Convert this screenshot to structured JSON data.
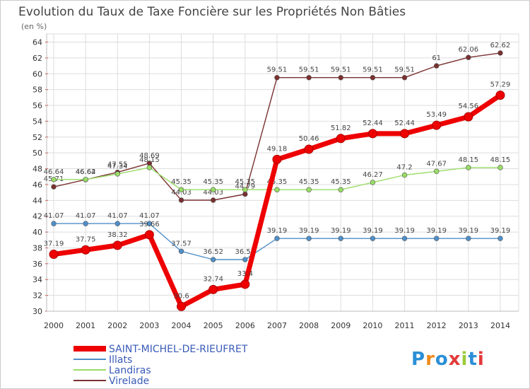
{
  "chart_data": {
    "type": "line",
    "title": "Evolution du Taux de Taxe Foncière sur les Propriétés Non Bâties",
    "ylabel": "(en %)",
    "xlabel": "",
    "categories": [
      "2000",
      "2001",
      "2002",
      "2003",
      "2004",
      "2005",
      "2006",
      "2007",
      "2008",
      "2009",
      "2010",
      "2011",
      "2012",
      "2013",
      "2014"
    ],
    "ylim": [
      30,
      64
    ],
    "yticks": [
      "30",
      "32",
      "34",
      "36",
      "38",
      "40",
      "42",
      "44",
      "46",
      "48",
      "50",
      "52",
      "54",
      "56",
      "58",
      "60",
      "62",
      "64"
    ],
    "grid": true,
    "legend_position": "bottom-left",
    "series": [
      {
        "name": "SAINT-MICHEL-DE-RIEUFRET",
        "color": "#ee0000",
        "values": [
          37.19,
          37.75,
          38.32,
          39.66,
          30.6,
          32.74,
          33.4,
          49.18,
          50.46,
          51.82,
          52.44,
          52.44,
          53.49,
          54.56,
          57.29
        ],
        "labels": [
          "37.19",
          "37.75",
          "38.32",
          "39.66",
          "30.6",
          "32.74",
          "33.4",
          "49.18",
          "50.46",
          "51.82",
          "52.44",
          "52.44",
          "53.49",
          "54.56",
          "57.29"
        ]
      },
      {
        "name": "Illats",
        "color": "#4f8fc9",
        "values": [
          41.07,
          41.07,
          41.07,
          41.07,
          37.57,
          36.52,
          36.52,
          39.19,
          39.19,
          39.19,
          39.19,
          39.19,
          39.19,
          39.19,
          39.19
        ],
        "labels": [
          "41.07",
          "41.07",
          "41.07",
          "41.07",
          "37.57",
          "36.52",
          "36.52",
          "39.19",
          "39.19",
          "39.19",
          "39.19",
          "39.19",
          "39.19",
          "39.19",
          "39.19"
        ]
      },
      {
        "name": "Landiras",
        "color": "#99dd66",
        "values": [
          46.64,
          46.64,
          47.34,
          48.15,
          45.35,
          45.35,
          45.35,
          45.35,
          45.35,
          45.35,
          46.27,
          47.2,
          47.67,
          48.15,
          48.15
        ],
        "labels": [
          "46.64",
          "46.64",
          "47.34",
          "48.15",
          "45.35",
          "45.35",
          "45.35",
          "45.35",
          "45.35",
          "45.35",
          "46.27",
          "47.2",
          "47.67",
          "48.15",
          "48.15"
        ]
      },
      {
        "name": "Virelade",
        "color": "#7a3030",
        "values": [
          45.71,
          46.62,
          47.55,
          48.69,
          44.03,
          44.03,
          44.79,
          59.51,
          59.51,
          59.51,
          59.51,
          59.51,
          61,
          62.06,
          62.62
        ],
        "labels": [
          "45.71",
          "46.62",
          "47.55",
          "48.69",
          "44.03",
          "44.03",
          "44.79",
          "59.51",
          "59.51",
          "59.51",
          "59.51",
          "59.51",
          "61",
          "62.06",
          "62.62"
        ]
      }
    ]
  },
  "logo": {
    "text": "Proxiti"
  }
}
